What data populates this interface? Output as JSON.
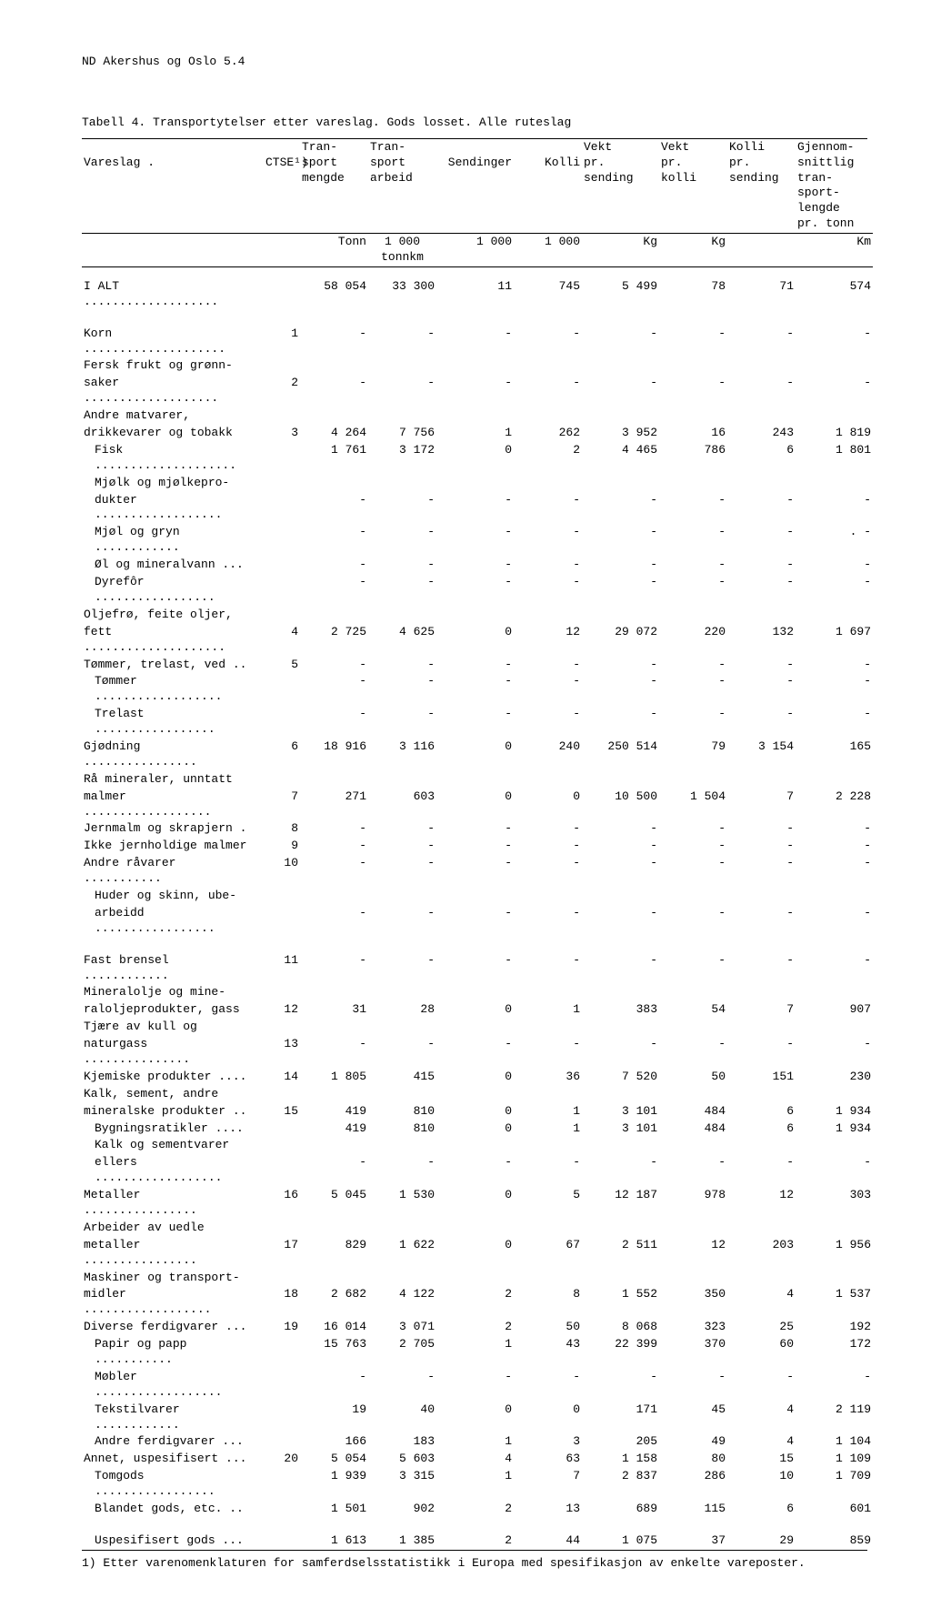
{
  "page_header": "ND  Akershus og Oslo  5.4",
  "table_title": "Tabell 4.  Transportytelser etter vareslag.  Gods losset.  Alle ruteslag",
  "columns": {
    "c0": "Vareslag .",
    "c1": "CTSE¹)",
    "c2": "Tran-\nsport\nmengde",
    "c3": "Tran-\nsport\narbeid",
    "c4": "Sendinger",
    "c5": "Kolli",
    "c6": "Vekt\npr.\nsending",
    "c7": "Vekt\npr.\nkolli",
    "c8": "Kolli\npr.\nsending",
    "c9": "Gjennom-\nsnittlig\ntran-\nsport-\nlengde\npr. tonn"
  },
  "units": {
    "u2": "Tonn",
    "u3": "1 000\ntonnkm",
    "u4": "1 000",
    "u5": "1 000",
    "u6": "Kg",
    "u7": "Kg",
    "u8": "",
    "u9": "Km"
  },
  "rows": [
    {
      "label": "I ALT",
      "dots": true,
      "c1": "",
      "c2": "58 054",
      "c3": "33 300",
      "c4": "11",
      "c5": "745",
      "c6": "5 499",
      "c7": "78",
      "c8": "71",
      "c9": "574",
      "gapAfter": true
    },
    {
      "label": "Korn",
      "dots": true,
      "c1": "1",
      "c2": "-",
      "c3": "-",
      "c4": "-",
      "c5": "-",
      "c6": "-",
      "c7": "-",
      "c8": "-",
      "c9": "-"
    },
    {
      "label": "Fersk frukt og grønn-"
    },
    {
      "label": "saker",
      "dots": true,
      "c1": "2",
      "c2": "-",
      "c3": "-",
      "c4": "-",
      "c5": "-",
      "c6": "-",
      "c7": "-",
      "c8": "-",
      "c9": "-"
    },
    {
      "label": "Andre matvarer,"
    },
    {
      "label": "drikkevarer og tobakk",
      "c1": "3",
      "c2": "4 264",
      "c3": "7 756",
      "c4": "1",
      "c5": "262",
      "c6": "3 952",
      "c7": "16",
      "c8": "243",
      "c9": "1 819"
    },
    {
      "label": "Fisk",
      "dots": true,
      "indent": true,
      "c1": "",
      "c2": "1 761",
      "c3": "3 172",
      "c4": "0",
      "c5": "2",
      "c6": "4 465",
      "c7": "786",
      "c8": "6",
      "c9": "1 801"
    },
    {
      "label": "Mjølk og mjølkepro-",
      "indent": true
    },
    {
      "label": "dukter",
      "dots": true,
      "indent": true,
      "c2": "-",
      "c3": "-",
      "c4": "-",
      "c5": "-",
      "c6": "-",
      "c7": "-",
      "c8": "-",
      "c9": "-"
    },
    {
      "label": "Mjøl og gryn",
      "dots": true,
      "indent": true,
      "c2": "-",
      "c3": "-",
      "c4": "-",
      "c5": "-",
      "c6": "-",
      "c7": "-",
      "c8": "-",
      "c9": ". -"
    },
    {
      "label": "Øl og mineralvann ...",
      "indent": true,
      "c2": "-",
      "c3": "-",
      "c4": "-",
      "c5": "-",
      "c6": "-",
      "c7": "-",
      "c8": "-",
      "c9": "-"
    },
    {
      "label": "Dyrefôr",
      "dots": true,
      "indent": true,
      "c2": "-",
      "c3": "-",
      "c4": "-",
      "c5": "-",
      "c6": "-",
      "c7": "-",
      "c8": "-",
      "c9": "-"
    },
    {
      "label": "Oljefrø, feite oljer,"
    },
    {
      "label": "fett",
      "dots": true,
      "c1": "4",
      "c2": "2 725",
      "c3": "4 625",
      "c4": "0",
      "c5": "12",
      "c6": "29 072",
      "c7": "220",
      "c8": "132",
      "c9": "1 697"
    },
    {
      "label": "Tømmer, trelast, ved ..",
      "c1": "5",
      "c2": "-",
      "c3": "-",
      "c4": "-",
      "c5": "-",
      "c6": "-",
      "c7": "-",
      "c8": "-",
      "c9": "-"
    },
    {
      "label": "Tømmer",
      "dots": true,
      "indent": true,
      "c2": "-",
      "c3": "-",
      "c4": "-",
      "c5": "-",
      "c6": "-",
      "c7": "-",
      "c8": "-",
      "c9": "-"
    },
    {
      "label": "Trelast",
      "dots": true,
      "indent": true,
      "c2": "-",
      "c3": "-",
      "c4": "-",
      "c5": "-",
      "c6": "-",
      "c7": "-",
      "c8": "-",
      "c9": "-"
    },
    {
      "label": "Gjødning",
      "dots": true,
      "c1": "6",
      "c2": "18 916",
      "c3": "3 116",
      "c4": "0",
      "c5": "240",
      "c6": "250 514",
      "c7": "79",
      "c8": "3 154",
      "c9": "165"
    },
    {
      "label": "Rå mineraler, unntatt"
    },
    {
      "label": "malmer",
      "dots": true,
      "c1": "7",
      "c2": "271",
      "c3": "603",
      "c4": "0",
      "c5": "0",
      "c6": "10 500",
      "c7": "1 504",
      "c8": "7",
      "c9": "2 228"
    },
    {
      "label": "Jernmalm og skrapjern .",
      "c1": "8",
      "c2": "-",
      "c3": "-",
      "c4": "-",
      "c5": "-",
      "c6": "-",
      "c7": "-",
      "c8": "-",
      "c9": "-"
    },
    {
      "label": "Ikke jernholdige malmer",
      "c1": "9",
      "c2": "-",
      "c3": "-",
      "c4": "-",
      "c5": "-",
      "c6": "-",
      "c7": "-",
      "c8": "-",
      "c9": "-"
    },
    {
      "label": "Andre råvarer",
      "dots": true,
      "c1": "10",
      "c2": "-",
      "c3": "-",
      "c4": "-",
      "c5": "-",
      "c6": "-",
      "c7": "-",
      "c8": "-",
      "c9": "-"
    },
    {
      "label": "Huder og skinn, ube-",
      "indent": true
    },
    {
      "label": "arbeidd",
      "dots": true,
      "indent": true,
      "c2": "-",
      "c3": "-",
      "c4": "-",
      "c5": "-",
      "c6": "-",
      "c7": "-",
      "c8": "-",
      "c9": "-",
      "gapAfter": true
    },
    {
      "label": "Fast brensel",
      "dots": true,
      "c1": "11",
      "c2": "-",
      "c3": "-",
      "c4": "-",
      "c5": "-",
      "c6": "-",
      "c7": "-",
      "c8": "-",
      "c9": "-"
    },
    {
      "label": "Mineralolje og mine-"
    },
    {
      "label": "raloljeprodukter, gass",
      "c1": "12",
      "c2": "31",
      "c3": "28",
      "c4": "0",
      "c5": "1",
      "c6": "383",
      "c7": "54",
      "c8": "7",
      "c9": "907"
    },
    {
      "label": "Tjære av kull og"
    },
    {
      "label": "naturgass",
      "dots": true,
      "c1": "13",
      "c2": "-",
      "c3": "-",
      "c4": "-",
      "c5": "-",
      "c6": "-",
      "c7": "-",
      "c8": "-",
      "c9": "-"
    },
    {
      "label": "Kjemiske produkter ....",
      "c1": "14",
      "c2": "1 805",
      "c3": "415",
      "c4": "0",
      "c5": "36",
      "c6": "7 520",
      "c7": "50",
      "c8": "151",
      "c9": "230"
    },
    {
      "label": "Kalk, sement, andre"
    },
    {
      "label": "mineralske produkter ..",
      "c1": "15",
      "c2": "419",
      "c3": "810",
      "c4": "0",
      "c5": "1",
      "c6": "3 101",
      "c7": "484",
      "c8": "6",
      "c9": "1 934"
    },
    {
      "label": "Bygningsratikler ....",
      "indent": true,
      "c2": "419",
      "c3": "810",
      "c4": "0",
      "c5": "1",
      "c6": "3 101",
      "c7": "484",
      "c8": "6",
      "c9": "1 934"
    },
    {
      "label": "Kalk og sementvarer",
      "indent": true
    },
    {
      "label": "ellers",
      "dots": true,
      "indent": true,
      "c2": "-",
      "c3": "-",
      "c4": "-",
      "c5": "-",
      "c6": "-",
      "c7": "-",
      "c8": "-",
      "c9": "-"
    },
    {
      "label": "Metaller",
      "dots": true,
      "c1": "16",
      "c2": "5 045",
      "c3": "1 530",
      "c4": "0",
      "c5": "5",
      "c6": "12 187",
      "c7": "978",
      "c8": "12",
      "c9": "303"
    },
    {
      "label": "Arbeider av uedle"
    },
    {
      "label": "metaller",
      "dots": true,
      "c1": "17",
      "c2": "829",
      "c3": "1 622",
      "c4": "0",
      "c5": "67",
      "c6": "2 511",
      "c7": "12",
      "c8": "203",
      "c9": "1 956"
    },
    {
      "label": "Maskiner og transport-"
    },
    {
      "label": "midler",
      "dots": true,
      "c1": "18",
      "c2": "2 682",
      "c3": "4 122",
      "c4": "2",
      "c5": "8",
      "c6": "1 552",
      "c7": "350",
      "c8": "4",
      "c9": "1 537"
    },
    {
      "label": "Diverse ferdigvarer ...",
      "c1": "19",
      "c2": "16 014",
      "c3": "3 071",
      "c4": "2",
      "c5": "50",
      "c6": "8 068",
      "c7": "323",
      "c8": "25",
      "c9": "192"
    },
    {
      "label": "Papir og papp",
      "dots": true,
      "indent": true,
      "c2": "15 763",
      "c3": "2 705",
      "c4": "1",
      "c5": "43",
      "c6": "22 399",
      "c7": "370",
      "c8": "60",
      "c9": "172"
    },
    {
      "label": "Møbler",
      "dots": true,
      "indent": true,
      "c2": "-",
      "c3": "-",
      "c4": "-",
      "c5": "-",
      "c6": "-",
      "c7": "-",
      "c8": "-",
      "c9": "-"
    },
    {
      "label": "Tekstilvarer",
      "dots": true,
      "indent": true,
      "c2": "19",
      "c3": "40",
      "c4": "0",
      "c5": "0",
      "c6": "171",
      "c7": "45",
      "c8": "4",
      "c9": "2 119"
    },
    {
      "label": "Andre ferdigvarer ...",
      "indent": true,
      "c2": "166",
      "c3": "183",
      "c4": "1",
      "c5": "3",
      "c6": "205",
      "c7": "49",
      "c8": "4",
      "c9": "1 104"
    },
    {
      "label": "Annet, uspesifisert ...",
      "c1": "20",
      "c2": "5 054",
      "c3": "5 603",
      "c4": "4",
      "c5": "63",
      "c6": "1 158",
      "c7": "80",
      "c8": "15",
      "c9": "1 109"
    },
    {
      "label": "Tomgods",
      "dots": true,
      "indent": true,
      "c2": "1 939",
      "c3": "3 315",
      "c4": "1",
      "c5": "7",
      "c6": "2 837",
      "c7": "286",
      "c8": "10",
      "c9": "1 709"
    },
    {
      "label": "Blandet gods, etc. ..",
      "indent": true,
      "c2": "1 501",
      "c3": "902",
      "c4": "2",
      "c5": "13",
      "c6": "689",
      "c7": "115",
      "c8": "6",
      "c9": "601",
      "gapAfter": true
    },
    {
      "label": "Uspesifisert gods ...",
      "indent": true,
      "c2": "1 613",
      "c3": "1 385",
      "c4": "2",
      "c5": "44",
      "c6": "1 075",
      "c7": "37",
      "c8": "29",
      "c9": "859"
    }
  ],
  "footnote": "1) Etter varenomenklaturen for samferdselsstatistikk i Europa med spesifikasjon av enkelte vareposter."
}
